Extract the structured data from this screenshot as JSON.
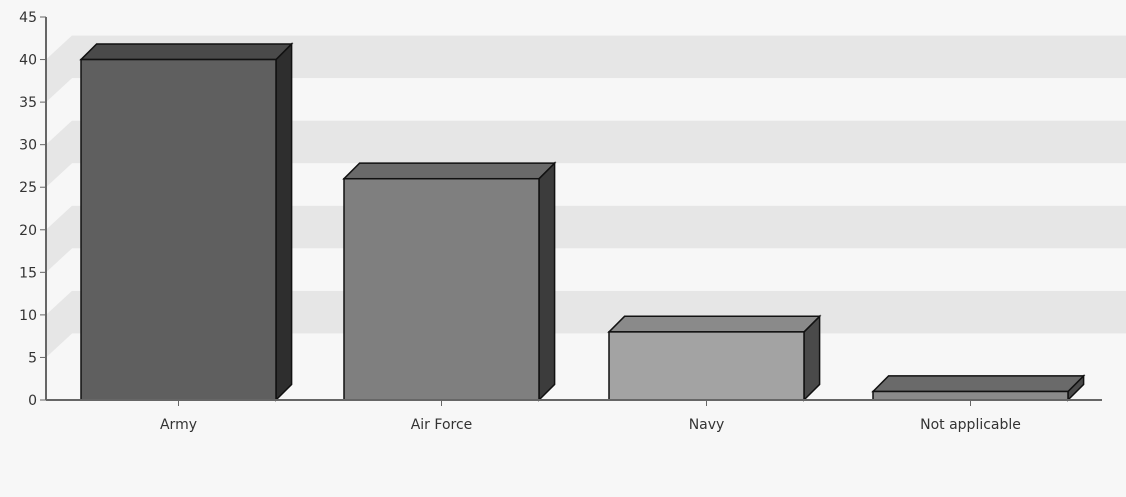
{
  "chart_data": {
    "type": "bar",
    "title": "",
    "xlabel": "",
    "ylabel": "",
    "categories": [
      "Army",
      "Air Force",
      "Navy",
      "Not applicable"
    ],
    "values": [
      40,
      26,
      8,
      1
    ],
    "ylim": [
      0,
      45
    ],
    "yticks": [
      "0",
      "5",
      "10",
      "15",
      "20",
      "25",
      "30",
      "35",
      "40",
      "45"
    ],
    "grid": true,
    "legend": "none",
    "style": "3d",
    "colors": {
      "background": "#f7f7f7",
      "band": "#e6e6e6",
      "axis": "#666666",
      "bar_faces": [
        "#5f5f5f",
        "#7f7f7f",
        "#a3a3a3",
        "#8a8a8a"
      ],
      "bar_tops": [
        "#4a4a4a",
        "#6a6a6a",
        "#8a8a8a",
        "#6a6a6a"
      ],
      "bar_sides": [
        "#2e2e2e",
        "#3c3c3c",
        "#4a4a4a",
        "#4a4a4a"
      ]
    }
  }
}
